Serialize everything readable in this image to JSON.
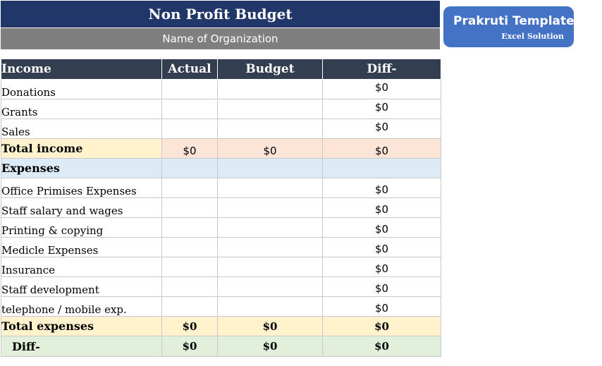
{
  "header": {
    "title": "Non Profit Budget",
    "subtitle": "Name of Organization"
  },
  "logo": {
    "name": "Prakruti Template",
    "tagline": "Excel Solution",
    "color": "#4472c4"
  },
  "table": {
    "columns": [
      "Income",
      "Actual",
      "Budget",
      "Diff-"
    ],
    "income_rows": [
      {
        "label": "Donations",
        "actual": "",
        "budget": "",
        "diff": "$0"
      },
      {
        "label": "Grants",
        "actual": "",
        "budget": "",
        "diff": "$0"
      },
      {
        "label": "Sales",
        "actual": "",
        "budget": "",
        "diff": "$0"
      }
    ],
    "total_income": {
      "label": "Total income",
      "actual": "$0",
      "budget": "$0",
      "diff": "$0"
    },
    "expenses_header": "Expenses",
    "expense_rows": [
      {
        "label": "Office Primises Expenses",
        "actual": "",
        "budget": "",
        "diff": "$0"
      },
      {
        "label": "Staff salary and wages",
        "actual": "",
        "budget": "",
        "diff": "$0"
      },
      {
        "label": "Printing & copying",
        "actual": "",
        "budget": "",
        "diff": "$0"
      },
      {
        "label": "Medicle Expenses",
        "actual": "",
        "budget": "",
        "diff": "$0"
      },
      {
        "label": "Insurance",
        "actual": "",
        "budget": "",
        "diff": "$0"
      },
      {
        "label": "Staff development",
        "actual": "",
        "budget": "",
        "diff": "$0"
      },
      {
        "label": "telephone / mobile exp.",
        "actual": "",
        "budget": "",
        "diff": "$0"
      }
    ],
    "total_expenses": {
      "label": "Total expenses",
      "actual": "$0",
      "budget": "$0",
      "diff": "$0"
    },
    "difference": {
      "label": "Diff-",
      "actual": "$0",
      "budget": "$0",
      "diff": "$0"
    }
  },
  "colors": {
    "title_bg": "#223769",
    "subtitle_bg": "#7f7f7f",
    "table_header_bg": "#333f50",
    "total_income_label_bg": "#fff2cc",
    "total_income_values_bg": "#fce4d6",
    "expenses_header_bg": "#ddebf7",
    "total_expenses_bg": "#fff2cc",
    "diff_row_bg": "#e2efda"
  }
}
